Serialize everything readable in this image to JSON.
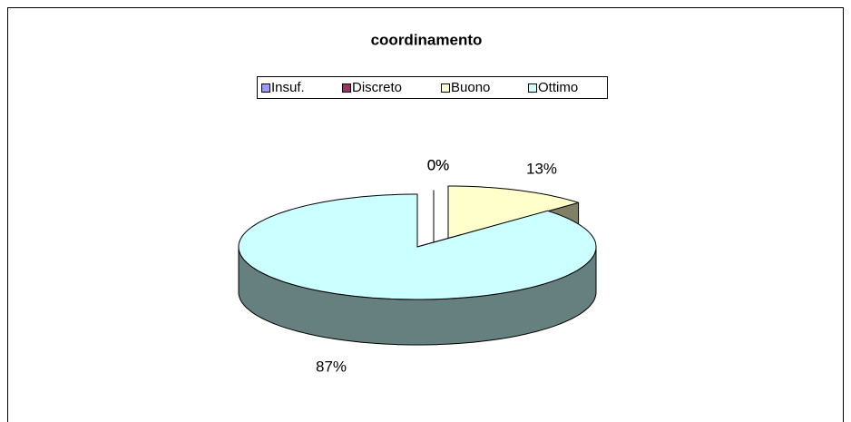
{
  "chart_data": {
    "type": "pie3d",
    "title": "coordinamento",
    "categories": [
      "Insuf.",
      "Discreto",
      "Buono",
      "Ottimo"
    ],
    "values": [
      0,
      0,
      13,
      87
    ],
    "value_labels": [
      "0%",
      "0%",
      "13%",
      "87%"
    ],
    "colors": [
      "#9999ff",
      "#993366",
      "#ffffcc",
      "#ccffff"
    ],
    "legend": "top"
  }
}
